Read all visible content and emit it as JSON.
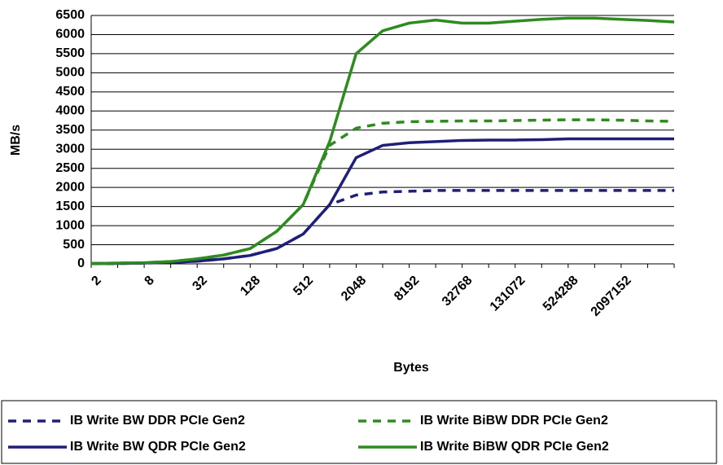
{
  "chart_data": {
    "type": "line",
    "y_label": "MB/s",
    "x_label": "Bytes",
    "categories": [
      "2",
      null,
      "8",
      null,
      "32",
      null,
      "128",
      null,
      "512",
      null,
      "2048",
      null,
      "8192",
      null,
      "32768",
      null,
      "131072",
      null,
      "524288",
      null,
      "2097152",
      null,
      null
    ],
    "series": [
      {
        "name": "IB Write BW DDR PCIe Gen2",
        "color": "#1f1f7a",
        "line": "dashed",
        "values": [
          5,
          10,
          20,
          40,
          70,
          130,
          220,
          400,
          780,
          1550,
          1800,
          1880,
          1900,
          1920,
          1920,
          1920,
          1920,
          1920,
          1920,
          1920,
          1920,
          1920,
          1920
        ]
      },
      {
        "name": "IB Write BiBW DDR PCIe Gen2",
        "color": "#2e8b1e",
        "line": "dashed",
        "values": [
          10,
          20,
          30,
          60,
          130,
          230,
          400,
          850,
          1550,
          3100,
          3550,
          3680,
          3720,
          3730,
          3740,
          3740,
          3750,
          3760,
          3770,
          3770,
          3760,
          3740,
          3730
        ]
      },
      {
        "name": "IB Write BW QDR PCIe Gen2",
        "color": "#1f1f7a",
        "line": "solid",
        "values": [
          5,
          10,
          20,
          40,
          70,
          130,
          220,
          400,
          780,
          1550,
          2780,
          3100,
          3170,
          3200,
          3230,
          3240,
          3240,
          3250,
          3270,
          3270,
          3270,
          3270,
          3270
        ]
      },
      {
        "name": "IB Write BiBW QDR PCIe Gen2",
        "color": "#2e8b1e",
        "line": "solid",
        "values": [
          10,
          20,
          30,
          60,
          130,
          230,
          400,
          850,
          1550,
          3200,
          5500,
          6100,
          6300,
          6380,
          6300,
          6300,
          6350,
          6400,
          6430,
          6430,
          6400,
          6370,
          6330
        ]
      }
    ],
    "ylim": [
      0,
      6500
    ],
    "yticks": [
      0,
      500,
      1000,
      1500,
      2000,
      2500,
      3000,
      3500,
      4000,
      4500,
      5000,
      5500,
      6000,
      6500
    ],
    "grid": true,
    "legend": "bottom"
  }
}
